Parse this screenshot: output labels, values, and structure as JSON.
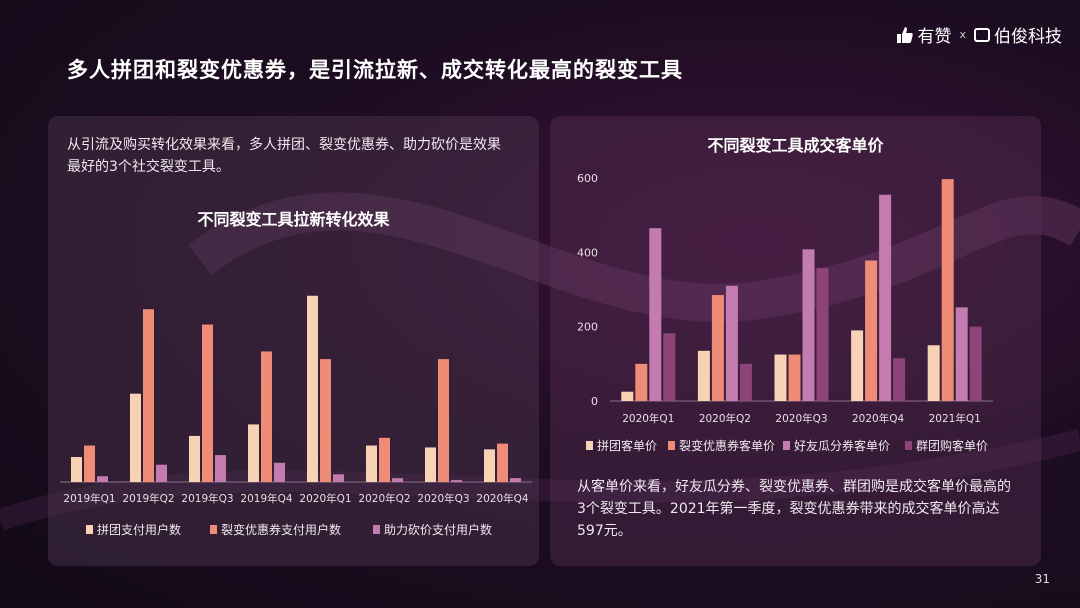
{
  "header": {
    "title": "多人拼团和裂变优惠券，是引流拉新、成交转化最高的裂变工具",
    "logo1": "有赞",
    "logo_sep": "x",
    "logo2": "伯俊科技"
  },
  "left_panel": {
    "description": "从引流及购买转化效果来看，多人拼团、裂变优惠券、助力砍价是效果最好的3个社交裂变工具。"
  },
  "right_panel": {
    "description": "从客单价来看，好友瓜分券、裂变优惠券、群团购是成交客单价最高的3个裂变工具。2021年第一季度，裂变优惠券带来的成交客单价高达597元。"
  },
  "page_number": "31",
  "colors": {
    "peach": "#f8d2b4",
    "salmon": "#ee8c78",
    "mauve": "#c47cb0",
    "plum": "#8e4478"
  },
  "chart_data": [
    {
      "type": "bar",
      "title": "不同裂变工具拉新转化效果",
      "categories": [
        "2019年Q1",
        "2019年Q2",
        "2019年Q3",
        "2019年Q4",
        "2020年Q1",
        "2020年Q2",
        "2020年Q3",
        "2020年Q4"
      ],
      "series": [
        {
          "name": "拼团支付用户数",
          "values": [
            13,
            46,
            24,
            30,
            97,
            19,
            18,
            17
          ]
        },
        {
          "name": "裂变优惠券支付用户数",
          "values": [
            19,
            90,
            82,
            68,
            64,
            23,
            64,
            20
          ]
        },
        {
          "name": "助力砍价支付用户数",
          "values": [
            3,
            9,
            14,
            10,
            4,
            2,
            1,
            2
          ]
        }
      ],
      "ylim": [
        0,
        100
      ],
      "grid": false,
      "legend": "bottom"
    },
    {
      "type": "bar",
      "title": "不同裂变工具成交客单价",
      "categories": [
        "2020年Q1",
        "2020年Q2",
        "2020年Q3",
        "2020年Q4",
        "2021年Q1"
      ],
      "yticks": [
        0,
        200,
        400,
        600
      ],
      "series": [
        {
          "name": "拼团客单价",
          "values": [
            25,
            135,
            125,
            190,
            150
          ]
        },
        {
          "name": "裂变优惠券客单价",
          "values": [
            100,
            285,
            125,
            378,
            597
          ]
        },
        {
          "name": "好友瓜分券客单价",
          "values": [
            465,
            310,
            408,
            555,
            252
          ]
        },
        {
          "name": "群团购客单价",
          "values": [
            182,
            100,
            358,
            115,
            200
          ]
        }
      ],
      "ylim": [
        0,
        600
      ],
      "grid": false,
      "legend": "bottom"
    }
  ]
}
